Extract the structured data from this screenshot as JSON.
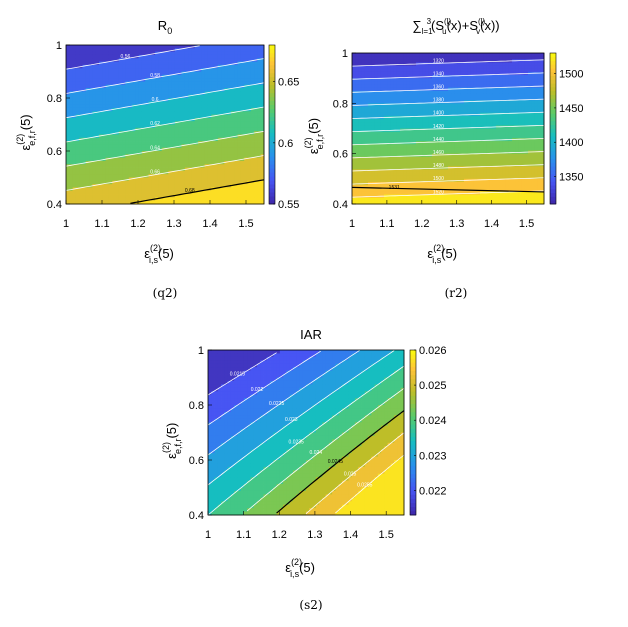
{
  "chart_data": [
    {
      "id": "q2",
      "type": "contour",
      "caption": "(q2)",
      "title": "R",
      "title_sub": "0",
      "xlabel": "ε",
      "xlabel_sup": "(2)",
      "xlabel_sub": "i,s",
      "xlabel_tail": "(5)",
      "ylabel": "ε",
      "ylabel_sup": "(2)",
      "ylabel_sub": "e,f,r",
      "ylabel_tail": "(5)",
      "xlim": [
        1,
        1.55
      ],
      "ylim": [
        0.4,
        1
      ],
      "xticks": [
        "1",
        "1.1",
        "1.2",
        "1.3",
        "1.4",
        "1.5"
      ],
      "yticks": [
        "0.4",
        "0.6",
        "0.8",
        "1"
      ],
      "colorbar_ticks": [
        "0.55",
        "0.6",
        "0.65"
      ],
      "colorbar_range": [
        0.55,
        0.68
      ],
      "contour_levels": [
        "0.56",
        "0.58",
        "0.6",
        "0.62",
        "0.64",
        "0.66",
        "0.68"
      ],
      "highlight_level": "0.68"
    },
    {
      "id": "r2",
      "type": "contour",
      "caption": "(r2)",
      "title": "∑",
      "title_sum_sup": "3",
      "title_sum_sub": "l=1",
      "title_expr": "(S",
      "title_u_sup": "(l)",
      "title_u_sub": "u",
      "title_mid": "(x)+S",
      "title_v_sup": "(l)",
      "title_v_sub": "v",
      "title_end": "(x))",
      "xlabel": "ε",
      "xlabel_sup": "(2)",
      "xlabel_sub": "i,s",
      "xlabel_tail": "(5)",
      "ylabel": "ε",
      "ylabel_sup": "(2)",
      "ylabel_sub": "e,f,r",
      "ylabel_tail": "(5)",
      "xlim": [
        1,
        1.55
      ],
      "ylim": [
        0.4,
        1
      ],
      "xticks": [
        "1",
        "1.1",
        "1.2",
        "1.3",
        "1.4",
        "1.5"
      ],
      "yticks": [
        "0.4",
        "0.6",
        "0.8",
        "1"
      ],
      "colorbar_ticks": [
        "1350",
        "1400",
        "1450",
        "1500"
      ],
      "colorbar_range": [
        1310,
        1530
      ],
      "contour_levels": [
        "1320",
        "1340",
        "1360",
        "1380",
        "1400",
        "1420",
        "1440",
        "1460",
        "1480",
        "1500",
        "1520"
      ],
      "highlight_level": "1531"
    },
    {
      "id": "s2",
      "type": "contour",
      "caption": "(s2)",
      "title": "IAR",
      "xlabel": "ε",
      "xlabel_sup": "(2)",
      "xlabel_sub": "i,s",
      "xlabel_tail": "(5)",
      "ylabel": "ε",
      "ylabel_sup": "(2)",
      "ylabel_sub": "e,f,r",
      "ylabel_tail": "(5)",
      "xlim": [
        1,
        1.55
      ],
      "ylim": [
        0.4,
        1
      ],
      "xticks": [
        "1",
        "1.1",
        "1.2",
        "1.3",
        "1.4",
        "1.5"
      ],
      "yticks": [
        "0.4",
        "0.6",
        "0.8",
        "1"
      ],
      "colorbar_ticks": [
        "0.022",
        "0.023",
        "0.024",
        "0.025",
        "0.026"
      ],
      "colorbar_range": [
        0.0213,
        0.026
      ],
      "contour_levels": [
        "0.0215",
        "0.022",
        "0.0225",
        "0.023",
        "0.0235",
        "0.024",
        "0.0245",
        "0.025",
        "0.0255"
      ],
      "highlight_level": "0.0245"
    }
  ],
  "colors": {
    "viridis_low": "#3e26a8",
    "viridis_high": "#f9fb0e",
    "contour_line": "#ffffff",
    "highlight_line": "#000000"
  }
}
